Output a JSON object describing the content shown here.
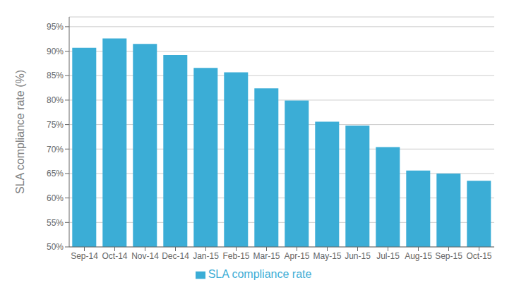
{
  "chart_data": {
    "type": "bar",
    "ylabel": "SLA compliance rate (%)",
    "categories": [
      "Sep-14",
      "Oct-14",
      "Nov-14",
      "Dec-14",
      "Jan-15",
      "Feb-15",
      "Mar-15",
      "Apr-15",
      "May-15",
      "Jun-15",
      "Jul-15",
      "Aug-15",
      "Sep-15",
      "Oct-15"
    ],
    "series": [
      {
        "name": "SLA compliance rate",
        "color": "#3BADD6",
        "values": [
          90.7,
          92.6,
          91.5,
          89.2,
          86.6,
          85.7,
          82.4,
          79.9,
          75.6,
          74.8,
          70.4,
          65.6,
          65.0,
          63.5
        ]
      }
    ],
    "ylim": [
      50,
      97
    ],
    "yticks": [
      {
        "value": 50,
        "label": "50%"
      },
      {
        "value": 55,
        "label": "55%"
      },
      {
        "value": 60,
        "label": "60%"
      },
      {
        "value": 65,
        "label": "65%"
      },
      {
        "value": 70,
        "label": "70%"
      },
      {
        "value": 75,
        "label": "75%"
      },
      {
        "value": 80,
        "label": "80%"
      },
      {
        "value": 85,
        "label": "85%"
      },
      {
        "value": 90,
        "label": "90%"
      },
      {
        "value": 95,
        "label": "95%"
      }
    ],
    "grid": true,
    "legend": "bottom"
  }
}
